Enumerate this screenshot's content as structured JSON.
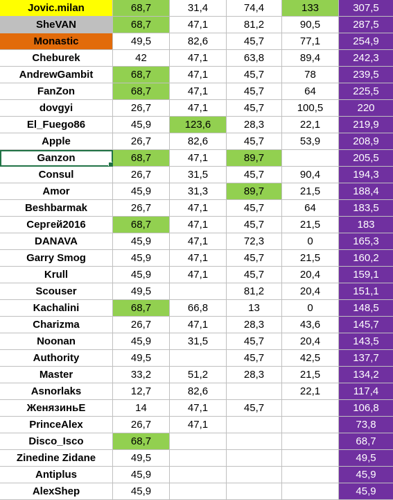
{
  "colors": {
    "highlight_green": "#92d050",
    "total_purple": "#7030a0",
    "name_yellow": "#ffff00",
    "name_silver": "#bfbfbf",
    "name_orange": "#e26b0a"
  },
  "rows": [
    {
      "name": "Jovic.milan",
      "v1": "68,7",
      "v2": "31,4",
      "v3": "74,4",
      "v4": "133",
      "total": "307,5",
      "name_bg": "#ffff00",
      "hl": [
        true,
        false,
        false,
        true
      ]
    },
    {
      "name": "SheVAN",
      "v1": "68,7",
      "v2": "47,1",
      "v3": "81,2",
      "v4": "90,5",
      "total": "287,5",
      "name_bg": "#bfbfbf",
      "hl": [
        true,
        false,
        false,
        false
      ]
    },
    {
      "name": "Monastic",
      "v1": "49,5",
      "v2": "82,6",
      "v3": "45,7",
      "v4": "77,1",
      "total": "254,9",
      "name_bg": "#e26b0a",
      "hl": [
        false,
        false,
        false,
        false
      ]
    },
    {
      "name": "Cheburek",
      "v1": "42",
      "v2": "47,1",
      "v3": "63,8",
      "v4": "89,4",
      "total": "242,3",
      "name_bg": "",
      "hl": [
        false,
        false,
        false,
        false
      ]
    },
    {
      "name": "AndrewGambit",
      "v1": "68,7",
      "v2": "47,1",
      "v3": "45,7",
      "v4": "78",
      "total": "239,5",
      "name_bg": "",
      "hl": [
        true,
        false,
        false,
        false
      ]
    },
    {
      "name": "FanZon",
      "v1": "68,7",
      "v2": "47,1",
      "v3": "45,7",
      "v4": "64",
      "total": "225,5",
      "name_bg": "",
      "hl": [
        true,
        false,
        false,
        false
      ]
    },
    {
      "name": "dovgyi",
      "v1": "26,7",
      "v2": "47,1",
      "v3": "45,7",
      "v4": "100,5",
      "total": "220",
      "name_bg": "",
      "hl": [
        false,
        false,
        false,
        false
      ]
    },
    {
      "name": "El_Fuego86",
      "v1": "45,9",
      "v2": "123,6",
      "v3": "28,3",
      "v4": "22,1",
      "total": "219,9",
      "name_bg": "",
      "hl": [
        false,
        true,
        false,
        false
      ]
    },
    {
      "name": "Apple",
      "v1": "26,7",
      "v2": "82,6",
      "v3": "45,7",
      "v4": "53,9",
      "total": "208,9",
      "name_bg": "",
      "hl": [
        false,
        false,
        false,
        false
      ]
    },
    {
      "name": "Ganzon",
      "v1": "68,7",
      "v2": "47,1",
      "v3": "89,7",
      "v4": "",
      "total": "205,5",
      "name_bg": "",
      "hl": [
        true,
        false,
        true,
        false
      ],
      "selected": true
    },
    {
      "name": "Consul",
      "v1": "26,7",
      "v2": "31,5",
      "v3": "45,7",
      "v4": "90,4",
      "total": "194,3",
      "name_bg": "",
      "hl": [
        false,
        false,
        false,
        false
      ]
    },
    {
      "name": "Amor",
      "v1": "45,9",
      "v2": "31,3",
      "v3": "89,7",
      "v4": "21,5",
      "total": "188,4",
      "name_bg": "",
      "hl": [
        false,
        false,
        true,
        false
      ]
    },
    {
      "name": "Beshbarmak",
      "v1": "26,7",
      "v2": "47,1",
      "v3": "45,7",
      "v4": "64",
      "total": "183,5",
      "name_bg": "",
      "hl": [
        false,
        false,
        false,
        false
      ]
    },
    {
      "name": "Сергей2016",
      "v1": "68,7",
      "v2": "47,1",
      "v3": "45,7",
      "v4": "21,5",
      "total": "183",
      "name_bg": "",
      "hl": [
        true,
        false,
        false,
        false
      ]
    },
    {
      "name": "DANAVA",
      "v1": "45,9",
      "v2": "47,1",
      "v3": "72,3",
      "v4": "0",
      "total": "165,3",
      "name_bg": "",
      "hl": [
        false,
        false,
        false,
        false
      ]
    },
    {
      "name": "Garry Smog",
      "v1": "45,9",
      "v2": "47,1",
      "v3": "45,7",
      "v4": "21,5",
      "total": "160,2",
      "name_bg": "",
      "hl": [
        false,
        false,
        false,
        false
      ]
    },
    {
      "name": "Krull",
      "v1": "45,9",
      "v2": "47,1",
      "v3": "45,7",
      "v4": "20,4",
      "total": "159,1",
      "name_bg": "",
      "hl": [
        false,
        false,
        false,
        false
      ]
    },
    {
      "name": "Scouser",
      "v1": "49,5",
      "v2": "",
      "v3": "81,2",
      "v4": "20,4",
      "total": "151,1",
      "name_bg": "",
      "hl": [
        false,
        false,
        false,
        false
      ]
    },
    {
      "name": "Kachalini",
      "v1": "68,7",
      "v2": "66,8",
      "v3": "13",
      "v4": "0",
      "total": "148,5",
      "name_bg": "",
      "hl": [
        true,
        false,
        false,
        false
      ]
    },
    {
      "name": "Charizma",
      "v1": "26,7",
      "v2": "47,1",
      "v3": "28,3",
      "v4": "43,6",
      "total": "145,7",
      "name_bg": "",
      "hl": [
        false,
        false,
        false,
        false
      ]
    },
    {
      "name": "Noonan",
      "v1": "45,9",
      "v2": "31,5",
      "v3": "45,7",
      "v4": "20,4",
      "total": "143,5",
      "name_bg": "",
      "hl": [
        false,
        false,
        false,
        false
      ]
    },
    {
      "name": "Authority",
      "v1": "49,5",
      "v2": "",
      "v3": "45,7",
      "v4": "42,5",
      "total": "137,7",
      "name_bg": "",
      "hl": [
        false,
        false,
        false,
        false
      ]
    },
    {
      "name": "Master",
      "v1": "33,2",
      "v2": "51,2",
      "v3": "28,3",
      "v4": "21,5",
      "total": "134,2",
      "name_bg": "",
      "hl": [
        false,
        false,
        false,
        false
      ]
    },
    {
      "name": "Asnorlaks",
      "v1": "12,7",
      "v2": "82,6",
      "v3": "",
      "v4": "22,1",
      "total": "117,4",
      "name_bg": "",
      "hl": [
        false,
        false,
        false,
        false
      ]
    },
    {
      "name": "ЖенязиньЕ",
      "v1": "14",
      "v2": "47,1",
      "v3": "45,7",
      "v4": "",
      "total": "106,8",
      "name_bg": "",
      "hl": [
        false,
        false,
        false,
        false
      ]
    },
    {
      "name": "PrinceAlex",
      "v1": "26,7",
      "v2": "47,1",
      "v3": "",
      "v4": "",
      "total": "73,8",
      "name_bg": "",
      "hl": [
        false,
        false,
        false,
        false
      ]
    },
    {
      "name": "Disco_Isco",
      "v1": "68,7",
      "v2": "",
      "v3": "",
      "v4": "",
      "total": "68,7",
      "name_bg": "",
      "hl": [
        true,
        false,
        false,
        false
      ]
    },
    {
      "name": "Zinedine Zidane",
      "v1": "49,5",
      "v2": "",
      "v3": "",
      "v4": "",
      "total": "49,5",
      "name_bg": "",
      "hl": [
        false,
        false,
        false,
        false
      ]
    },
    {
      "name": "Antiplus",
      "v1": "45,9",
      "v2": "",
      "v3": "",
      "v4": "",
      "total": "45,9",
      "name_bg": "",
      "hl": [
        false,
        false,
        false,
        false
      ]
    },
    {
      "name": "AlexShep",
      "v1": "45,9",
      "v2": "",
      "v3": "",
      "v4": "",
      "total": "45,9",
      "name_bg": "",
      "hl": [
        false,
        false,
        false,
        false
      ]
    }
  ]
}
